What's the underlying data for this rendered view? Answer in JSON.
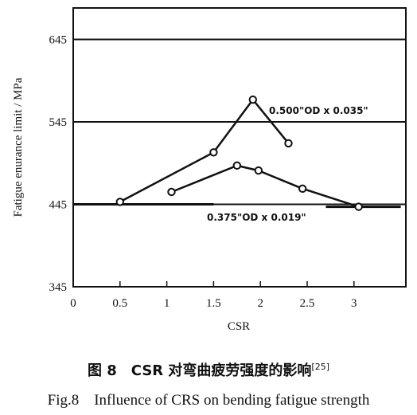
{
  "chart_data": {
    "type": "line",
    "xlabel": "CSR",
    "ylabel": "Fatigue enurance limit / MPa",
    "xlim": [
      0,
      3.5
    ],
    "ylim": [
      345,
      695
    ],
    "x_ticks": [
      "0",
      "0.5",
      "1",
      "1.5",
      "2",
      "2.5",
      "3"
    ],
    "x_tick_values": [
      0,
      0.5,
      1,
      1.5,
      2,
      2.5,
      3
    ],
    "y_ticks": [
      "345",
      "445",
      "545",
      "645"
    ],
    "y_tick_values": [
      345,
      445,
      545,
      645
    ],
    "grid": "horizontal lines at y = 445, 545, 645",
    "series": [
      {
        "label": "0.500\"OD x 0.035\"",
        "points": [
          {
            "x": 0.5,
            "y": 448
          },
          {
            "x": 1.5,
            "y": 508
          },
          {
            "x": 1.92,
            "y": 572
          },
          {
            "x": 2.3,
            "y": 519
          }
        ]
      },
      {
        "label": "0.375\"OD x 0.019\"",
        "points": [
          {
            "x": 1.05,
            "y": 460
          },
          {
            "x": 1.75,
            "y": 492
          },
          {
            "x": 1.98,
            "y": 486
          },
          {
            "x": 2.45,
            "y": 464
          },
          {
            "x": 3.05,
            "y": 442
          }
        ]
      }
    ],
    "reference_segments": [
      {
        "y": 445,
        "x_from": 0,
        "x_to": 1.5
      },
      {
        "y": 442,
        "x_from": 2.7,
        "x_to": 3.5
      }
    ]
  },
  "caption": {
    "zh_main": "图 8　CSR 对弯曲疲劳强度的影响",
    "zh_ref": "[25]",
    "en": "Fig.8　Influence of CRS on bending fatigue strength"
  }
}
